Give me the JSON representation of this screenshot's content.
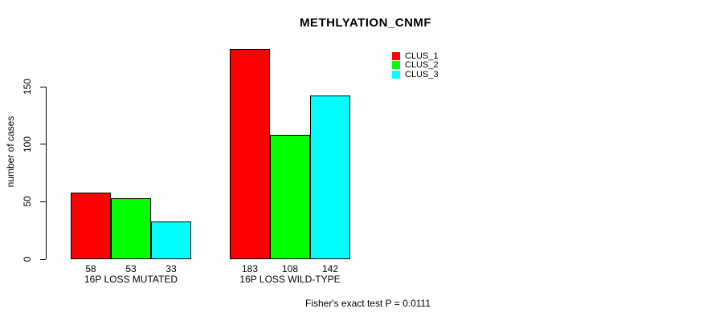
{
  "chart_data": {
    "type": "bar",
    "title": "METHLYATION_CNMF",
    "xlabel": "",
    "ylabel": "number of cases",
    "categories": [
      "16P LOSS MUTATED",
      "16P LOSS WILD-TYPE"
    ],
    "series": [
      {
        "name": "CLUS_1",
        "color": "#FF0000",
        "values": [
          58,
          183
        ]
      },
      {
        "name": "CLUS_2",
        "color": "#00FF00",
        "values": [
          53,
          108
        ]
      },
      {
        "name": "CLUS_3",
        "color": "#00FFFF",
        "values": [
          33,
          142
        ]
      }
    ],
    "bar_labels": [
      [
        58,
        53,
        33
      ],
      [
        183,
        108,
        142
      ]
    ],
    "yticks": [
      0,
      50,
      100,
      150
    ],
    "ylim": [
      0,
      190
    ],
    "grid": false,
    "legend_position": "top-right",
    "bar_border_color": "#000000",
    "annotation": "Fisher's exact test P = 0.0111"
  }
}
